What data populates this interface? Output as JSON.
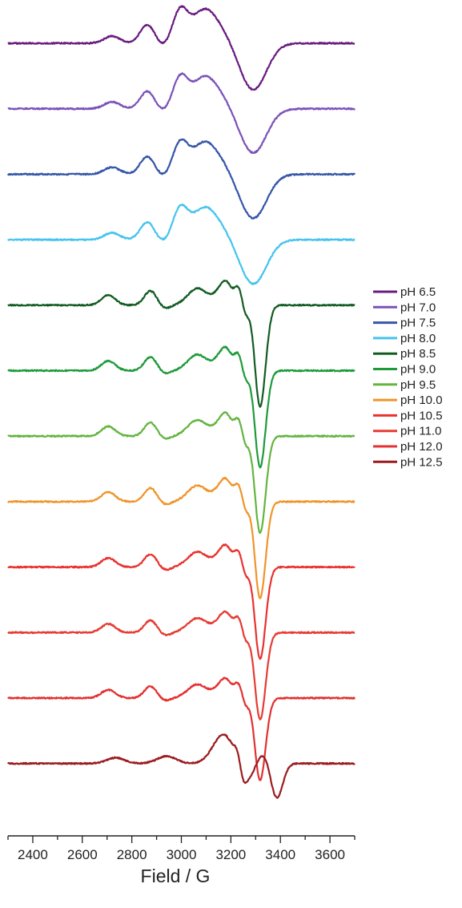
{
  "chart_data": {
    "type": "line",
    "title": "",
    "xlabel": "Field / G",
    "ylabel": "",
    "xlim": [
      2300,
      3700
    ],
    "x_ticks": [
      2400,
      2600,
      2800,
      3000,
      3200,
      3400,
      3600
    ],
    "x_tick_labels": [
      "2400",
      "2600",
      "2800",
      "3000",
      "3200",
      "3400",
      "3600"
    ],
    "grid": false,
    "stacked_offset": true,
    "legend_position": "right",
    "series": [
      {
        "name": "pH 6.5",
        "color": "#6a1b7f",
        "profile": "broad",
        "amp": 1.0
      },
      {
        "name": "pH 7.0",
        "color": "#7b52b8",
        "profile": "broad",
        "amp": 0.95
      },
      {
        "name": "pH 7.5",
        "color": "#3556a8",
        "profile": "broad",
        "amp": 0.95
      },
      {
        "name": "pH 8.0",
        "color": "#45c3ee",
        "profile": "broad",
        "amp": 0.95
      },
      {
        "name": "pH 8.5",
        "color": "#125c23",
        "profile": "sharp",
        "amp": 1.05
      },
      {
        "name": "pH 9.0",
        "color": "#1f9a3a",
        "profile": "sharp",
        "amp": 1.0
      },
      {
        "name": "pH 9.5",
        "color": "#63b540",
        "profile": "sharp",
        "amp": 1.0
      },
      {
        "name": "pH 10.0",
        "color": "#f0942a",
        "profile": "sharp",
        "amp": 1.0
      },
      {
        "name": "pH 10.5",
        "color": "#e8322f",
        "profile": "sharp",
        "amp": 0.95
      },
      {
        "name": "pH 11.0",
        "color": "#e63b33",
        "profile": "sharp",
        "amp": 0.9
      },
      {
        "name": "pH 12.0",
        "color": "#e33030",
        "profile": "sharp",
        "amp": 0.85
      },
      {
        "name": "pH 12.5",
        "color": "#9b1b1f",
        "profile": "shifted",
        "amp": 0.9
      }
    ]
  }
}
